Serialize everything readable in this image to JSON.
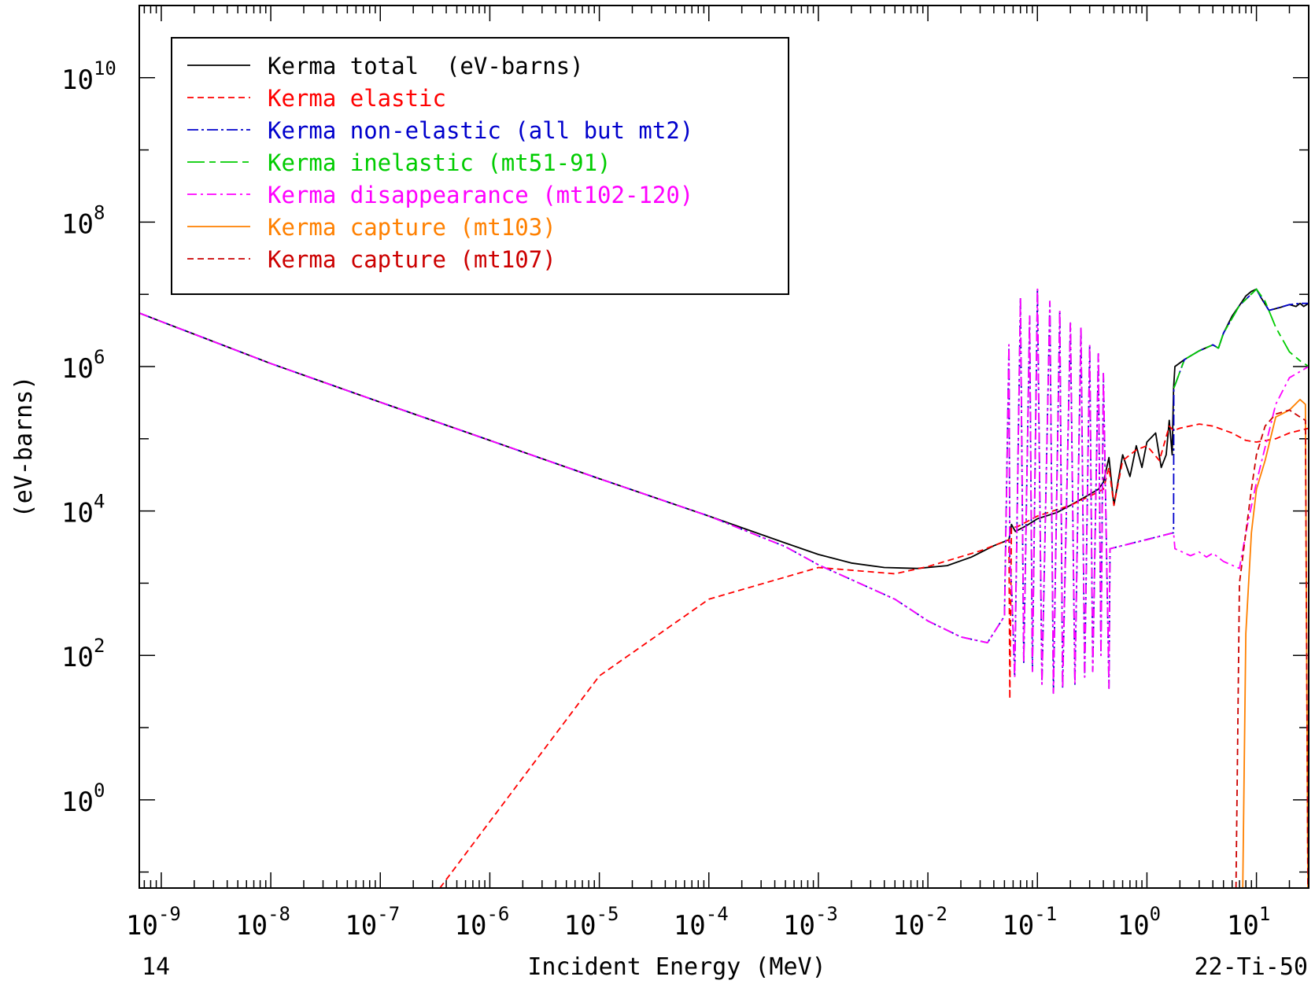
{
  "chart_data": {
    "type": "line",
    "title": "",
    "xlabel": "Incident Energy (MeV)",
    "ylabel": "(eV-barns)",
    "x_scale": "log",
    "y_scale": "log",
    "xlim": [
      6.3e-10,
      30
    ],
    "ylim": [
      0.06,
      100000000000.0
    ],
    "x_ticks": [
      {
        "value": 1e-09,
        "base": "10",
        "exp": "-9"
      },
      {
        "value": 1e-08,
        "base": "10",
        "exp": "-8"
      },
      {
        "value": 1e-07,
        "base": "10",
        "exp": "-7"
      },
      {
        "value": 1e-06,
        "base": "10",
        "exp": "-6"
      },
      {
        "value": 1e-05,
        "base": "10",
        "exp": "-5"
      },
      {
        "value": 0.0001,
        "base": "10",
        "exp": "-4"
      },
      {
        "value": 0.001,
        "base": "10",
        "exp": "-3"
      },
      {
        "value": 0.01,
        "base": "10",
        "exp": "-2"
      },
      {
        "value": 0.1,
        "base": "10",
        "exp": "-1"
      },
      {
        "value": 1,
        "base": "10",
        "exp": "0"
      },
      {
        "value": 10,
        "base": "10",
        "exp": "1"
      }
    ],
    "y_ticks": [
      {
        "value": 1,
        "base": "10",
        "exp": "0"
      },
      {
        "value": 100,
        "base": "10",
        "exp": "2"
      },
      {
        "value": 10000,
        "base": "10",
        "exp": "4"
      },
      {
        "value": 1000000,
        "base": "10",
        "exp": "6"
      },
      {
        "value": 100000000,
        "base": "10",
        "exp": "8"
      },
      {
        "value": 10000000000,
        "base": "10",
        "exp": "10"
      }
    ],
    "bottom_left_label": "14",
    "bottom_right_label": "22-Ti-50",
    "legend_position": "top-left",
    "series": [
      {
        "name": "Kerma total  (eV-barns)",
        "color": "#000000",
        "dash": "solid",
        "points": [
          [
            6.3e-10,
            5500000.0
          ],
          [
            1e-09,
            4200000.0
          ],
          [
            1e-08,
            1100000.0
          ],
          [
            1e-07,
            320000.0
          ],
          [
            1e-06,
            95000.0
          ],
          [
            1e-05,
            28000.0
          ],
          [
            0.0001,
            8500
          ],
          [
            0.0005,
            3600
          ],
          [
            0.001,
            2500
          ],
          [
            0.002,
            1900
          ],
          [
            0.004,
            1650
          ],
          [
            0.008,
            1600
          ],
          [
            0.015,
            1750
          ],
          [
            0.025,
            2300
          ],
          [
            0.04,
            3300
          ],
          [
            0.055,
            4000
          ],
          [
            0.058,
            6500
          ],
          [
            0.063,
            5200
          ],
          [
            0.08,
            6300
          ],
          [
            0.1,
            7800
          ],
          [
            0.15,
            9500
          ],
          [
            0.2,
            12000
          ],
          [
            0.28,
            16000
          ],
          [
            0.36,
            20000
          ],
          [
            0.4,
            25000
          ],
          [
            0.45,
            55000
          ],
          [
            0.5,
            12000
          ],
          [
            0.6,
            60000
          ],
          [
            0.7,
            30000
          ],
          [
            0.8,
            80000
          ],
          [
            0.9,
            40000
          ],
          [
            1.0,
            90000
          ],
          [
            1.2,
            120000
          ],
          [
            1.35,
            40000
          ],
          [
            1.5,
            60000
          ],
          [
            1.6,
            180000
          ],
          [
            1.7,
            60000
          ],
          [
            1.75,
            500000
          ],
          [
            1.8,
            1000000
          ],
          [
            2.2,
            1250000
          ],
          [
            3,
            1650000
          ],
          [
            4,
            2000000
          ],
          [
            4.5,
            1800000
          ],
          [
            5,
            2900000
          ],
          [
            6,
            5000000
          ],
          [
            7,
            7000000
          ],
          [
            8,
            9500000
          ],
          [
            9,
            11000000
          ],
          [
            10,
            11800000
          ],
          [
            11,
            9000000
          ],
          [
            13,
            6000000
          ],
          [
            16,
            6500000
          ],
          [
            20,
            7200000
          ],
          [
            23,
            6800000
          ],
          [
            25,
            7500000
          ],
          [
            27,
            6800000
          ],
          [
            30,
            7500000
          ]
        ]
      },
      {
        "name": "Kerma elastic",
        "color": "#ff0000",
        "dash": "8,5",
        "points": [
          [
            3.5e-07,
            0.06
          ],
          [
            1e-06,
            0.5
          ],
          [
            1e-05,
            52
          ],
          [
            0.0001,
            600
          ],
          [
            0.001,
            1650
          ],
          [
            0.005,
            1350
          ],
          [
            0.01,
            1700
          ],
          [
            0.03,
            2800
          ],
          [
            0.055,
            4000
          ],
          [
            0.056,
            25
          ],
          [
            0.058,
            6000
          ],
          [
            0.065,
            6000
          ],
          [
            0.1,
            8500
          ],
          [
            0.2,
            12000
          ],
          [
            0.3,
            16000
          ],
          [
            0.4,
            20000
          ],
          [
            0.45,
            40000
          ],
          [
            0.5,
            12000
          ],
          [
            0.6,
            50000
          ],
          [
            0.8,
            70000
          ],
          [
            1.0,
            80000
          ],
          [
            1.3,
            50000
          ],
          [
            1.6,
            150000
          ],
          [
            1.75,
            130000
          ],
          [
            2,
            140000
          ],
          [
            3,
            160000
          ],
          [
            4,
            150000
          ],
          [
            6,
            120000
          ],
          [
            8,
            95000
          ],
          [
            10,
            90000
          ],
          [
            15,
            100000
          ],
          [
            20,
            120000
          ],
          [
            30,
            140000
          ]
        ]
      },
      {
        "name": "Kerma non-elastic (all but mt2)",
        "color": "#0000cc",
        "dash": "14,4,3,4",
        "points": [
          [
            6.3e-10,
            5500000.0
          ],
          [
            1e-09,
            4200000.0
          ],
          [
            1e-08,
            1100000.0
          ],
          [
            1e-07,
            320000.0
          ],
          [
            1e-06,
            95000.0
          ],
          [
            1e-05,
            28000.0
          ],
          [
            0.0001,
            8500
          ],
          [
            0.0005,
            3200
          ],
          [
            0.001,
            1800
          ],
          [
            0.005,
            600
          ],
          [
            0.01,
            300
          ],
          [
            0.02,
            180
          ],
          [
            0.035,
            150
          ],
          [
            0.05,
            350
          ],
          [
            0.055,
            2000000
          ],
          [
            0.056,
            2000
          ],
          [
            0.058,
            1000
          ],
          [
            0.062,
            50
          ],
          [
            0.07,
            9000000
          ],
          [
            0.075,
            80
          ],
          [
            0.085,
            5000000
          ],
          [
            0.09,
            60
          ],
          [
            0.1,
            12000000
          ],
          [
            0.11,
            40
          ],
          [
            0.13,
            8000000
          ],
          [
            0.14,
            30
          ],
          [
            0.16,
            6000000
          ],
          [
            0.17,
            35
          ],
          [
            0.2,
            4000000
          ],
          [
            0.22,
            40
          ],
          [
            0.25,
            3500000
          ],
          [
            0.27,
            50
          ],
          [
            0.3,
            2000000
          ],
          [
            0.32,
            60
          ],
          [
            0.36,
            1500000
          ],
          [
            0.38,
            100
          ],
          [
            0.4,
            800000
          ],
          [
            0.45,
            35
          ],
          [
            0.46,
            3000
          ],
          [
            1.75,
            5000
          ],
          [
            1.76,
            500000
          ],
          [
            2.2,
            1250000
          ],
          [
            3,
            1650000
          ],
          [
            4,
            2000000
          ],
          [
            4.5,
            1800000
          ],
          [
            5,
            2900000
          ],
          [
            7,
            7000000
          ],
          [
            10,
            11800000
          ],
          [
            11,
            9000000
          ],
          [
            13,
            6000000
          ],
          [
            20,
            7200000
          ],
          [
            25,
            7500000
          ],
          [
            30,
            7500000
          ]
        ]
      },
      {
        "name": "Kerma inelastic (mt51-91)",
        "color": "#00cc00",
        "dash": "22,6,8,6",
        "points": [
          [
            1.76,
            500000
          ],
          [
            2.2,
            1250000
          ],
          [
            3,
            1650000
          ],
          [
            4,
            2000000
          ],
          [
            4.5,
            1800000
          ],
          [
            5,
            2900000
          ],
          [
            7,
            7000000
          ],
          [
            10,
            11800000
          ],
          [
            12,
            8000000
          ],
          [
            15,
            3500000
          ],
          [
            20,
            1600000
          ],
          [
            25,
            1200000
          ],
          [
            30,
            1000000
          ]
        ]
      },
      {
        "name": "Kerma disappearance (mt102-120)",
        "color": "#ff00ff",
        "dash": "12,5,3,5",
        "points": [
          [
            6.3e-10,
            5500000.0
          ],
          [
            1e-09,
            4200000.0
          ],
          [
            1e-08,
            1100000.0
          ],
          [
            1e-07,
            320000.0
          ],
          [
            1e-06,
            95000.0
          ],
          [
            1e-05,
            28000.0
          ],
          [
            0.0001,
            8500
          ],
          [
            0.0005,
            3200
          ],
          [
            0.001,
            1800
          ],
          [
            0.005,
            600
          ],
          [
            0.01,
            300
          ],
          [
            0.02,
            180
          ],
          [
            0.035,
            150
          ],
          [
            0.05,
            350
          ],
          [
            0.055,
            2000000
          ],
          [
            0.056,
            2000
          ],
          [
            0.058,
            1000
          ],
          [
            0.062,
            50
          ],
          [
            0.07,
            9000000
          ],
          [
            0.075,
            80
          ],
          [
            0.085,
            5000000
          ],
          [
            0.09,
            60
          ],
          [
            0.1,
            12000000
          ],
          [
            0.11,
            40
          ],
          [
            0.13,
            8000000
          ],
          [
            0.14,
            30
          ],
          [
            0.16,
            6000000
          ],
          [
            0.17,
            35
          ],
          [
            0.2,
            4000000
          ],
          [
            0.22,
            40
          ],
          [
            0.25,
            3500000
          ],
          [
            0.27,
            50
          ],
          [
            0.3,
            2000000
          ],
          [
            0.32,
            60
          ],
          [
            0.36,
            1500000
          ],
          [
            0.38,
            100
          ],
          [
            0.4,
            800000
          ],
          [
            0.45,
            35
          ],
          [
            0.46,
            3000
          ],
          [
            1.0,
            4000
          ],
          [
            1.75,
            5000
          ],
          [
            1.8,
            3000
          ],
          [
            2.5,
            2400
          ],
          [
            3,
            2700
          ],
          [
            3.5,
            2300
          ],
          [
            4,
            2600
          ],
          [
            5,
            2000
          ],
          [
            7,
            1600
          ],
          [
            8,
            5000
          ],
          [
            10,
            25000
          ],
          [
            15,
            300000
          ],
          [
            20,
            700000
          ],
          [
            30,
            1000000
          ]
        ]
      },
      {
        "name": "Kerma capture (mt103)",
        "color": "#ff8000",
        "dash": "solid",
        "points": [
          [
            7.5,
            0.06
          ],
          [
            8,
            200
          ],
          [
            9,
            5000
          ],
          [
            10,
            20000
          ],
          [
            12,
            50000
          ],
          [
            15,
            200000
          ],
          [
            20,
            250000
          ],
          [
            25,
            350000
          ],
          [
            28,
            300000
          ],
          [
            29.5,
            0.06
          ]
        ]
      },
      {
        "name": "Kerma capture (mt107)",
        "color": "#cc0000",
        "dash": "8,5",
        "points": [
          [
            6.5,
            0.06
          ],
          [
            7,
            1000
          ],
          [
            8,
            5000
          ],
          [
            9,
            20000
          ],
          [
            10,
            60000
          ],
          [
            12,
            150000
          ],
          [
            15,
            220000
          ],
          [
            20,
            250000
          ],
          [
            25,
            200000
          ],
          [
            28,
            180000
          ],
          [
            29.5,
            0.06
          ]
        ]
      }
    ]
  }
}
